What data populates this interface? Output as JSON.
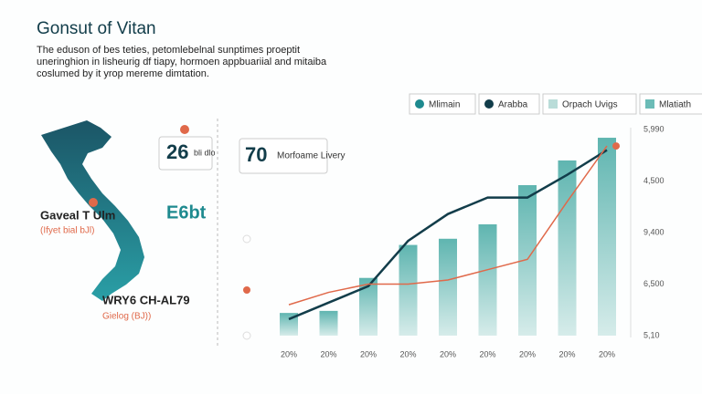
{
  "title": "Gonsut of Vitan",
  "description": [
    "The eduson of bes teties, petomlebelnal sunptimes proeptit",
    "uneringhion in lisheurig df tiapy, hormoen appbuariial and mitaiba",
    "coslumed by it yrop mereme dimtation."
  ],
  "map_labels": [
    {
      "title": "Gaveal T Ulm",
      "note": "(Ifyet bial bJl)"
    },
    {
      "title": "WRY6 CH-AL79",
      "note": "Gielog (BJ))"
    }
  ],
  "stats": [
    {
      "value": "26",
      "label": "bli dlo"
    },
    {
      "value": "70",
      "label": "Morfoame Livery"
    },
    {
      "value": "E6bt"
    }
  ],
  "chart_data": {
    "type": "bar-line",
    "legend": [
      {
        "label": "Mlimain",
        "color": "#1e8a8f",
        "shape": "dot"
      },
      {
        "label": "Arabba",
        "color": "#123d4a",
        "shape": "dot"
      },
      {
        "label": "Orpach Uvigs",
        "color": "#b9dcd8",
        "shape": "square"
      },
      {
        "label": "Mlatiath",
        "color": "#6cbcb7",
        "shape": "square"
      }
    ],
    "categories": [
      "20%",
      "20%",
      "20%",
      "20%",
      "20%",
      "20%",
      "20%",
      "20%",
      "20%"
    ],
    "y_axis_labels": [
      "5,990",
      "4,500",
      "9,400",
      "6,500",
      "5,10"
    ],
    "ylim": [
      0,
      100
    ],
    "series": [
      {
        "kind": "bar",
        "color": "#6cbcb7",
        "values": [
          11,
          12,
          28,
          44,
          47,
          54,
          73,
          85,
          96
        ]
      },
      {
        "kind": "line",
        "color": "#123d4a",
        "values": [
          8,
          16,
          24,
          46,
          59,
          67,
          67,
          78,
          90
        ]
      },
      {
        "kind": "line",
        "color": "#e0694a",
        "values": [
          15,
          21,
          25,
          25,
          27,
          32,
          37,
          65,
          92
        ]
      }
    ]
  }
}
